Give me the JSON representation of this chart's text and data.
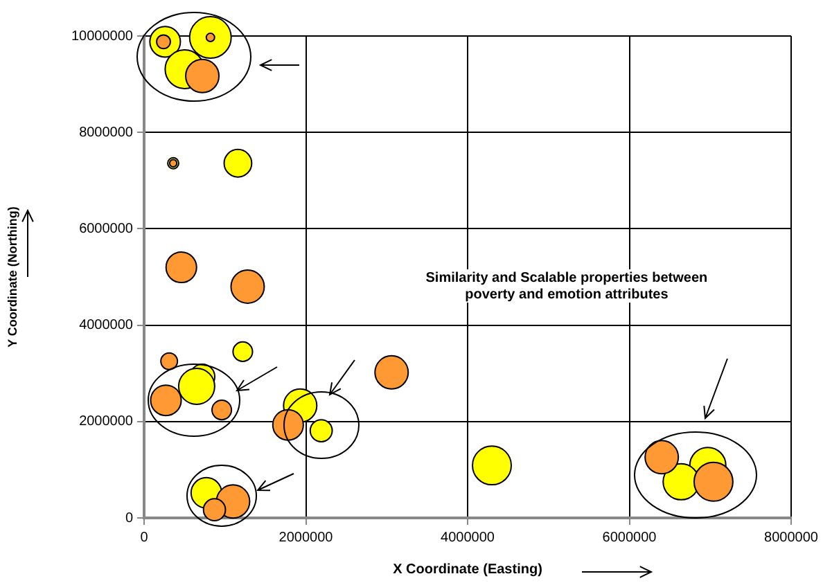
{
  "chart_data": {
    "type": "bubble",
    "xlabel": "X Coordinate (Easting)",
    "ylabel": "Y Coordinate (Northing)",
    "annotations": [
      "Similarity and Scalable properties between poverty and emotion attributes"
    ],
    "xlim": [
      0,
      8000000
    ],
    "ylim": [
      0,
      10000000
    ],
    "xticks": [
      0,
      2000000,
      4000000,
      6000000,
      8000000
    ],
    "yticks": [
      0,
      2000000,
      4000000,
      6000000,
      8000000,
      10000000
    ],
    "grid": true,
    "legend": false,
    "series": [
      {
        "color": "#ff9933",
        "x": [
          240000,
          820000,
          720000,
          360000,
          460000,
          1280000,
          310000,
          270000,
          960000,
          1780000,
          3060000,
          1100000,
          870000,
          6400000,
          7040000
        ],
        "values": [
          9880000,
          9970000,
          9170000,
          7360000,
          5200000,
          4800000,
          3250000,
          2440000,
          2240000,
          1930000,
          3020000,
          340000,
          170000,
          1260000,
          750000
        ],
        "sizes": [
          0.11,
          0.04,
          0.64,
          0.03,
          0.54,
          0.64,
          0.16,
          0.54,
          0.22,
          0.54,
          0.64,
          0.64,
          0.28,
          0.64,
          0.87
        ]
      },
      {
        "color": "#ffff00",
        "x": [
          260000,
          820000,
          500000,
          360000,
          1160000,
          1220000,
          720000,
          650000,
          1930000,
          2190000,
          770000,
          4300000,
          6970000,
          6640000
        ],
        "values": [
          9880000,
          9970000,
          9310000,
          7360000,
          7360000,
          3450000,
          2930000,
          2730000,
          2330000,
          1810000,
          520000,
          1090000,
          1090000,
          750000
        ],
        "sizes": [
          0.54,
          1,
          0.87,
          0.07,
          0.44,
          0.22,
          0.36,
          0.75,
          0.64,
          0.28,
          0.54,
          0.87,
          0.75,
          0.75
        ]
      }
    ]
  }
}
